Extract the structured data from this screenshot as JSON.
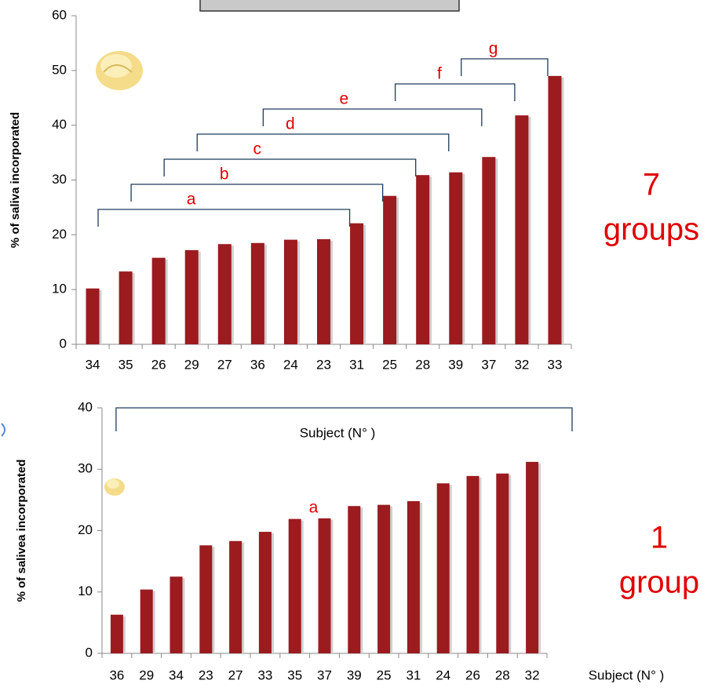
{
  "chart_data": [
    {
      "type": "bar",
      "y_label": "% of saliva incorporated",
      "categories": [
        "34",
        "35",
        "26",
        "29",
        "27",
        "36",
        "24",
        "23",
        "31",
        "25",
        "28",
        "39",
        "37",
        "32",
        "33"
      ],
      "values": [
        10.2,
        13.3,
        15.8,
        17.2,
        18.3,
        18.5,
        19.1,
        19.2,
        22.1,
        27.1,
        30.9,
        31.4,
        34.2,
        41.8,
        49.0
      ],
      "color": "#9b1b1f",
      "ylim": [
        0,
        60
      ],
      "yticks": [
        0,
        10,
        20,
        30,
        40,
        50,
        60
      ],
      "groups": [
        {
          "label": "a",
          "start": 0,
          "end": 8
        },
        {
          "label": "b",
          "start": 1,
          "end": 9
        },
        {
          "label": "c",
          "start": 2,
          "end": 10
        },
        {
          "label": "d",
          "start": 3,
          "end": 11
        },
        {
          "label": "e",
          "start": 5,
          "end": 12
        },
        {
          "label": "f",
          "start": 9,
          "end": 13
        },
        {
          "label": "g",
          "start": 11,
          "end": 14
        }
      ],
      "note": [
        "7",
        "groups"
      ]
    },
    {
      "type": "bar",
      "y_label": "% of salivea incorporated",
      "x_label": "Subject (N°  )",
      "bracket_label": "Subject (N°  )",
      "categories": [
        "36",
        "29",
        "34",
        "23",
        "27",
        "33",
        "35",
        "37",
        "39",
        "25",
        "31",
        "24",
        "26",
        "28",
        "32"
      ],
      "values": [
        6.3,
        10.4,
        12.5,
        17.6,
        18.3,
        19.8,
        21.9,
        22.0,
        24.0,
        24.2,
        24.8,
        27.7,
        28.9,
        29.3,
        31.2
      ],
      "color": "#9b1b1f",
      "ylim": [
        0,
        40
      ],
      "yticks": [
        0,
        10,
        20,
        30,
        40
      ],
      "groups": [
        {
          "label": "a",
          "start": 0,
          "end": 14
        }
      ],
      "note": [
        "1",
        "group"
      ]
    }
  ]
}
